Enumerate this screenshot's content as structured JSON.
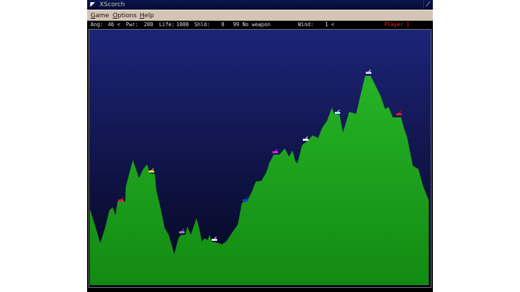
{
  "window": {
    "title": "XScorch",
    "menu_icon": "corner-arrow-icon",
    "maximize_icon": "resize-icon"
  },
  "menu": {
    "items": [
      {
        "label": "Game"
      },
      {
        "label": "Options"
      },
      {
        "label": "Help"
      }
    ]
  },
  "status": {
    "angle_label": "Ang:",
    "angle": "46 <",
    "power_label": "Pwr:",
    "power": "200",
    "life_label": "Life:",
    "life": "1000",
    "shield_label": "Shld:",
    "shield": "0",
    "weapon": "99 No weapon",
    "wind_label": "Wind:",
    "wind": "1 <",
    "player": "Player 1"
  },
  "colors": {
    "sky_top": "#1c2478",
    "sky_bottom": "#05061c",
    "terrain": "#1ea01e",
    "player_text": "#ff2020"
  },
  "tanks": [
    {
      "color": "#e02020"
    },
    {
      "color": "#f0e020"
    },
    {
      "color": "#9a80c0"
    },
    {
      "color": "#e0e0ff"
    },
    {
      "color": "#2040e0"
    },
    {
      "color": "#e020e0"
    },
    {
      "color": "#ffffff"
    },
    {
      "color": "#a0f0f0"
    },
    {
      "color": "#d8d0ff"
    },
    {
      "color": "#e02020"
    }
  ]
}
